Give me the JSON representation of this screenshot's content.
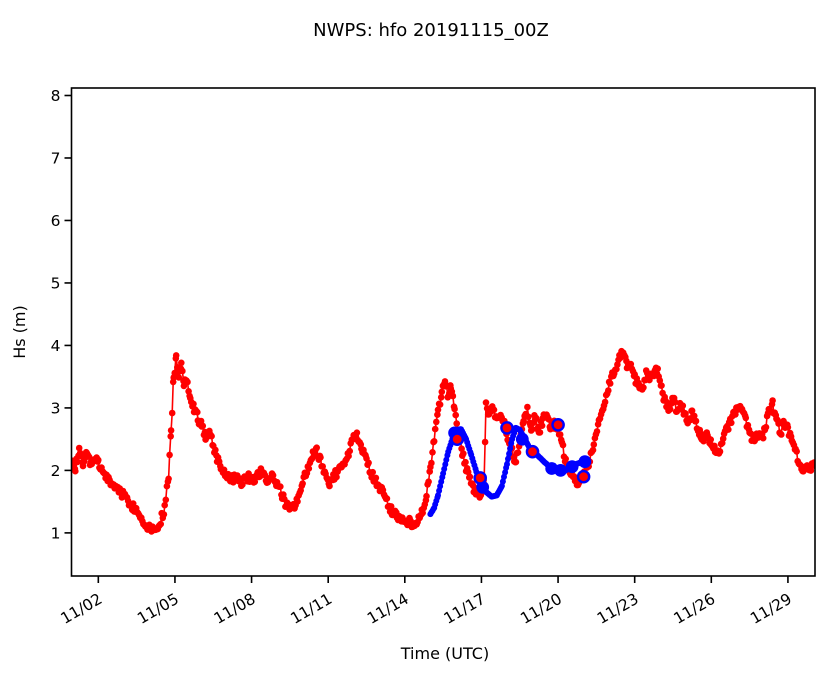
{
  "chart_data": {
    "type": "line",
    "title": "NWPS: hfo 20191115_00Z",
    "xlabel": "Time (UTC)",
    "ylabel": "Hs (m)",
    "x_unit": "day of November (UTC)",
    "xlim": [
      0.95,
      30.06
    ],
    "ylim": [
      0.31,
      8.12
    ],
    "grid": false,
    "legend": "none",
    "xticks": {
      "values": [
        2,
        5,
        8,
        11,
        14,
        17,
        20,
        23,
        26,
        29
      ],
      "labels": [
        "11/02",
        "11/05",
        "11/08",
        "11/11",
        "11/14",
        "11/17",
        "11/20",
        "11/23",
        "11/26",
        "11/29"
      ]
    },
    "yticks": {
      "values": [
        1,
        2,
        3,
        4,
        5,
        6,
        7,
        8
      ],
      "labels": [
        "1",
        "2",
        "3",
        "4",
        "5",
        "6",
        "7",
        "8"
      ]
    },
    "series": [
      {
        "name": "observations",
        "color": "#ff0000",
        "style": "small-dots-with-line",
        "line_width": 1.6,
        "marker_radius": 3.3,
        "jitter": 0.14,
        "points": [
          [
            0.96,
            2.2
          ],
          [
            1.1,
            2.05
          ],
          [
            1.25,
            2.3
          ],
          [
            1.4,
            2.1
          ],
          [
            1.55,
            2.25
          ],
          [
            1.7,
            2.1
          ],
          [
            1.85,
            2.2
          ],
          [
            2.0,
            2.1
          ],
          [
            2.2,
            1.95
          ],
          [
            2.4,
            1.85
          ],
          [
            2.6,
            1.75
          ],
          [
            2.8,
            1.7
          ],
          [
            3.0,
            1.6
          ],
          [
            3.2,
            1.5
          ],
          [
            3.4,
            1.4
          ],
          [
            3.6,
            1.3
          ],
          [
            3.8,
            1.15
          ],
          [
            4.0,
            1.1
          ],
          [
            4.2,
            1.05
          ],
          [
            4.4,
            1.15
          ],
          [
            4.6,
            1.4
          ],
          [
            4.75,
            1.9
          ],
          [
            4.85,
            2.6
          ],
          [
            4.95,
            3.5
          ],
          [
            5.05,
            3.8
          ],
          [
            5.15,
            3.55
          ],
          [
            5.25,
            3.7
          ],
          [
            5.35,
            3.35
          ],
          [
            5.45,
            3.5
          ],
          [
            5.6,
            3.2
          ],
          [
            5.75,
            3.0
          ],
          [
            5.9,
            2.85
          ],
          [
            6.05,
            2.7
          ],
          [
            6.2,
            2.55
          ],
          [
            6.35,
            2.65
          ],
          [
            6.5,
            2.4
          ],
          [
            6.65,
            2.2
          ],
          [
            6.8,
            2.05
          ],
          [
            7.0,
            1.95
          ],
          [
            7.2,
            1.85
          ],
          [
            7.4,
            1.9
          ],
          [
            7.6,
            1.82
          ],
          [
            7.8,
            1.9
          ],
          [
            8.0,
            1.85
          ],
          [
            8.2,
            1.9
          ],
          [
            8.4,
            2.0
          ],
          [
            8.6,
            1.85
          ],
          [
            8.8,
            1.88
          ],
          [
            9.0,
            1.8
          ],
          [
            9.2,
            1.6
          ],
          [
            9.4,
            1.42
          ],
          [
            9.6,
            1.38
          ],
          [
            9.8,
            1.55
          ],
          [
            10.0,
            1.8
          ],
          [
            10.2,
            2.05
          ],
          [
            10.4,
            2.25
          ],
          [
            10.55,
            2.3
          ],
          [
            10.7,
            2.15
          ],
          [
            10.9,
            1.95
          ],
          [
            11.05,
            1.8
          ],
          [
            11.2,
            1.9
          ],
          [
            11.4,
            2.0
          ],
          [
            11.6,
            2.1
          ],
          [
            11.8,
            2.3
          ],
          [
            12.0,
            2.5
          ],
          [
            12.15,
            2.55
          ],
          [
            12.3,
            2.35
          ],
          [
            12.5,
            2.15
          ],
          [
            12.7,
            1.95
          ],
          [
            12.9,
            1.8
          ],
          [
            13.1,
            1.7
          ],
          [
            13.3,
            1.5
          ],
          [
            13.5,
            1.35
          ],
          [
            13.7,
            1.28
          ],
          [
            13.9,
            1.22
          ],
          [
            14.1,
            1.18
          ],
          [
            14.3,
            1.15
          ],
          [
            14.5,
            1.2
          ],
          [
            14.7,
            1.35
          ],
          [
            14.85,
            1.6
          ],
          [
            15.0,
            2.0
          ],
          [
            15.15,
            2.5
          ],
          [
            15.3,
            2.9
          ],
          [
            15.45,
            3.25
          ],
          [
            15.6,
            3.4
          ],
          [
            15.7,
            3.15
          ],
          [
            15.8,
            3.35
          ],
          [
            15.95,
            2.95
          ],
          [
            16.1,
            2.6
          ],
          [
            16.25,
            2.3
          ],
          [
            16.4,
            2.05
          ],
          [
            16.55,
            1.85
          ],
          [
            16.7,
            1.7
          ],
          [
            16.85,
            1.6
          ],
          [
            17.0,
            1.65
          ],
          [
            17.1,
            1.8
          ],
          [
            17.18,
            3.05
          ],
          [
            17.3,
            2.9
          ],
          [
            17.45,
            3.0
          ],
          [
            17.6,
            2.8
          ],
          [
            17.75,
            2.95
          ],
          [
            17.9,
            2.75
          ],
          [
            18.05,
            2.5
          ],
          [
            18.2,
            2.3
          ],
          [
            18.35,
            2.1
          ],
          [
            18.5,
            2.5
          ],
          [
            18.65,
            2.85
          ],
          [
            18.8,
            2.95
          ],
          [
            18.95,
            2.65
          ],
          [
            19.1,
            2.85
          ],
          [
            19.25,
            2.6
          ],
          [
            19.4,
            2.8
          ],
          [
            19.55,
            2.9
          ],
          [
            19.7,
            2.65
          ],
          [
            19.85,
            2.75
          ],
          [
            20.0,
            2.65
          ],
          [
            20.15,
            2.45
          ],
          [
            20.3,
            2.15
          ],
          [
            20.5,
            1.95
          ],
          [
            20.7,
            1.8
          ],
          [
            20.9,
            1.85
          ],
          [
            21.05,
            1.95
          ],
          [
            21.2,
            2.1
          ],
          [
            21.4,
            2.4
          ],
          [
            21.6,
            2.8
          ],
          [
            21.8,
            3.1
          ],
          [
            22.0,
            3.35
          ],
          [
            22.2,
            3.6
          ],
          [
            22.4,
            3.8
          ],
          [
            22.55,
            3.9
          ],
          [
            22.7,
            3.65
          ],
          [
            22.85,
            3.75
          ],
          [
            23.0,
            3.5
          ],
          [
            23.15,
            3.35
          ],
          [
            23.3,
            3.3
          ],
          [
            23.45,
            3.55
          ],
          [
            23.6,
            3.45
          ],
          [
            23.75,
            3.55
          ],
          [
            23.9,
            3.6
          ],
          [
            24.05,
            3.3
          ],
          [
            24.2,
            3.1
          ],
          [
            24.35,
            3.0
          ],
          [
            24.5,
            3.15
          ],
          [
            24.65,
            2.95
          ],
          [
            24.8,
            3.05
          ],
          [
            24.95,
            2.9
          ],
          [
            25.1,
            2.8
          ],
          [
            25.25,
            2.9
          ],
          [
            25.4,
            2.75
          ],
          [
            25.55,
            2.6
          ],
          [
            25.7,
            2.5
          ],
          [
            25.85,
            2.55
          ],
          [
            26.0,
            2.45
          ],
          [
            26.15,
            2.35
          ],
          [
            26.3,
            2.3
          ],
          [
            26.5,
            2.55
          ],
          [
            26.7,
            2.75
          ],
          [
            26.9,
            2.9
          ],
          [
            27.05,
            3.0
          ],
          [
            27.2,
            2.95
          ],
          [
            27.35,
            2.8
          ],
          [
            27.5,
            2.6
          ],
          [
            27.65,
            2.5
          ],
          [
            27.8,
            2.55
          ],
          [
            27.95,
            2.5
          ],
          [
            28.1,
            2.65
          ],
          [
            28.25,
            2.95
          ],
          [
            28.4,
            3.05
          ],
          [
            28.55,
            2.8
          ],
          [
            28.7,
            2.6
          ],
          [
            28.85,
            2.75
          ],
          [
            29.0,
            2.65
          ],
          [
            29.15,
            2.5
          ],
          [
            29.3,
            2.3
          ],
          [
            29.45,
            2.1
          ],
          [
            29.6,
            2.0
          ],
          [
            29.75,
            2.1
          ],
          [
            29.9,
            2.05
          ],
          [
            30.05,
            2.1
          ]
        ]
      },
      {
        "name": "forecast",
        "color": "#0000ff",
        "style": "thick-dotted-line",
        "line_width": 4.4,
        "marker_radius": 3.0,
        "jitter": 0,
        "points": [
          [
            15.0,
            1.3
          ],
          [
            15.15,
            1.4
          ],
          [
            15.3,
            1.6
          ],
          [
            15.5,
            1.95
          ],
          [
            15.7,
            2.3
          ],
          [
            15.9,
            2.55
          ],
          [
            16.05,
            2.65
          ],
          [
            16.2,
            2.66
          ],
          [
            16.4,
            2.5
          ],
          [
            16.6,
            2.25
          ],
          [
            16.8,
            1.98
          ],
          [
            17.0,
            1.78
          ],
          [
            17.2,
            1.65
          ],
          [
            17.4,
            1.58
          ],
          [
            17.6,
            1.6
          ],
          [
            17.8,
            1.75
          ],
          [
            18.0,
            2.1
          ],
          [
            18.2,
            2.5
          ],
          [
            18.35,
            2.68
          ],
          [
            18.5,
            2.65
          ],
          [
            18.7,
            2.5
          ],
          [
            18.9,
            2.35
          ],
          [
            19.1,
            2.28
          ],
          [
            19.3,
            2.2
          ],
          [
            19.5,
            2.12
          ],
          [
            19.7,
            2.05
          ],
          [
            19.9,
            2.0
          ],
          [
            20.1,
            1.98
          ],
          [
            20.3,
            2.0
          ],
          [
            20.5,
            2.05
          ],
          [
            20.7,
            2.1
          ],
          [
            20.9,
            2.13
          ],
          [
            21.05,
            2.14
          ]
        ]
      }
    ],
    "markers": [
      {
        "name": "forecast-large-blue-dots",
        "face": "#0000ff",
        "edge": "none",
        "radius": 6.4,
        "edge_width": 0,
        "points": [
          [
            15.95,
            2.6
          ],
          [
            17.05,
            1.73
          ],
          [
            18.6,
            2.5
          ],
          [
            19.75,
            2.03
          ],
          [
            20.1,
            2.0
          ],
          [
            20.55,
            2.06
          ],
          [
            21.05,
            2.14
          ]
        ]
      },
      {
        "name": "blue-edged-red-circles",
        "face": "#ff0000",
        "edge": "#0000ff",
        "radius": 5.6,
        "edge_width": 2.4,
        "points": [
          [
            16.05,
            2.5
          ],
          [
            16.95,
            1.88
          ],
          [
            18.0,
            2.68
          ],
          [
            19.0,
            2.3
          ],
          [
            20.0,
            2.73
          ],
          [
            21.0,
            1.9
          ]
        ]
      }
    ],
    "colors": {
      "observations": "#ff0000",
      "forecast": "#0000ff",
      "axes": "#000000",
      "background": "#ffffff"
    }
  }
}
